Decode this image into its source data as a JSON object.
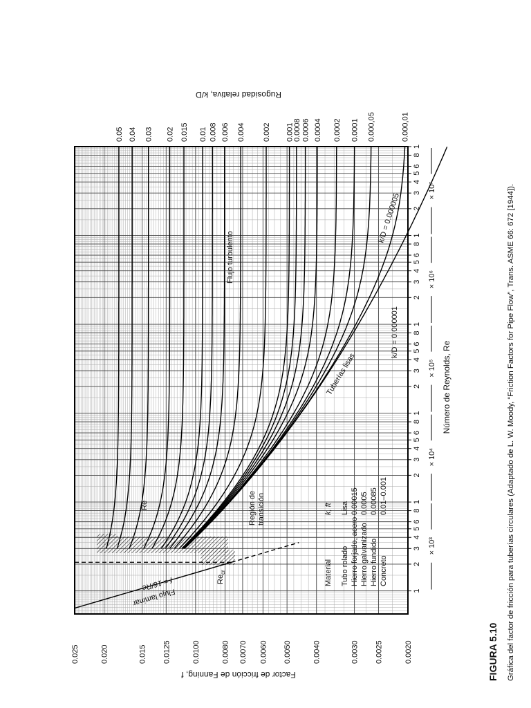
{
  "chart_data": {
    "type": "line",
    "log_x": true,
    "log_y": true,
    "grid": true,
    "x_label": "Número de Reynolds, Re",
    "y_label": "Factor de fricción de Fanning, f",
    "y2_label": "Rugosidad relativa, k/D",
    "xlim": [
      550,
      100000000
    ],
    "ylim": [
      0.002,
      0.025
    ],
    "xticks": [
      {
        "value": 1000,
        "label": "1"
      },
      {
        "value": 2000,
        "label": "2"
      },
      {
        "value": 3000,
        "label": "3"
      },
      {
        "value": 4000,
        "label": "4"
      },
      {
        "value": 5000,
        "label": "5"
      },
      {
        "value": 6000,
        "label": "6"
      },
      {
        "value": 8000,
        "label": "8"
      },
      {
        "value": 10000,
        "label": "1"
      },
      {
        "value": 20000,
        "label": "2"
      },
      {
        "value": 30000,
        "label": "3"
      },
      {
        "value": 40000,
        "label": "4"
      },
      {
        "value": 50000,
        "label": "5"
      },
      {
        "value": 60000,
        "label": "6"
      },
      {
        "value": 80000,
        "label": "8"
      },
      {
        "value": 100000,
        "label": "1"
      },
      {
        "value": 200000,
        "label": "2"
      },
      {
        "value": 300000,
        "label": "3"
      },
      {
        "value": 400000,
        "label": "4"
      },
      {
        "value": 500000,
        "label": "5"
      },
      {
        "value": 600000,
        "label": "6"
      },
      {
        "value": 800000,
        "label": "8"
      },
      {
        "value": 1000000,
        "label": "1"
      },
      {
        "value": 2000000,
        "label": "2"
      },
      {
        "value": 3000000,
        "label": "3"
      },
      {
        "value": 4000000,
        "label": "4"
      },
      {
        "value": 5000000,
        "label": "5"
      },
      {
        "value": 6000000,
        "label": "6"
      },
      {
        "value": 8000000,
        "label": "8"
      },
      {
        "value": 10000000,
        "label": "1"
      },
      {
        "value": 20000000,
        "label": "2"
      },
      {
        "value": 30000000,
        "label": "3"
      },
      {
        "value": 40000000,
        "label": "4"
      },
      {
        "value": 50000000,
        "label": "5"
      },
      {
        "value": 60000000,
        "label": "6"
      },
      {
        "value": 80000000,
        "label": "8"
      },
      {
        "value": 100000000,
        "label": "1"
      }
    ],
    "decade_labels": [
      "× 10³",
      "× 10⁴",
      "× 10⁵",
      "× 10⁶",
      "× 10⁷"
    ],
    "yticks": [
      0.025,
      {
        "value": 0.02,
        "label": "0.020"
      },
      0.015,
      0.0125,
      {
        "value": 0.01,
        "label": "0.0100"
      },
      {
        "value": 0.008,
        "label": "0.0080"
      },
      {
        "value": 0.007,
        "label": "0.0070"
      },
      {
        "value": 0.006,
        "label": "0.0060"
      },
      {
        "value": 0.005,
        "label": "0.0050"
      },
      {
        "value": 0.004,
        "label": "0.0040"
      },
      {
        "value": 0.003,
        "label": "0.0030"
      },
      0.0025,
      {
        "value": 0.002,
        "label": "0.0020"
      }
    ],
    "roughness": [
      0.05,
      0.04,
      0.03,
      0.02,
      0.015,
      0.01,
      0.008,
      0.006,
      0.004,
      0.002,
      0.001,
      0.0008,
      0.0006,
      0.0004,
      0.0002,
      0.0001,
      {
        "value": 5e-05,
        "label": "0.000,05"
      },
      {
        "value": 1e-05,
        "label": "0.000,01"
      }
    ],
    "annotations": {
      "laminar": "Flujo laminar",
      "laminar_eq": "f = 16/Re",
      "re_cr": {
        "main": "Re",
        "sub": "cr"
      },
      "re": "Re",
      "transition": [
        "Región de",
        "transición"
      ],
      "turbulent": "Flujo turbulento",
      "smooth": "Tuberías lisas",
      "kd_a": "k/D = 0.000005",
      "kd_b": "k/D = 0.000001"
    },
    "table": {
      "header": [
        "Material",
        "k, ft"
      ],
      "rows": [
        [
          "Tubo rolado",
          "Lisa"
        ],
        [
          "Hierro forjado, acero",
          "0.00015"
        ],
        [
          "Hierro galvanizado",
          "0.0005"
        ],
        [
          "Hierro fundido",
          "0.00085"
        ],
        [
          "Concreto",
          "0.01–0.001"
        ]
      ]
    }
  },
  "caption": {
    "label": "FIGURA 5.10",
    "text": "Gráfica del factor de fricción para tuberías circulares (Adaptado de L. W. Moody, “Friction Factors for Pipe Flow”, Trans. ASME 66: 672 [1944])."
  }
}
